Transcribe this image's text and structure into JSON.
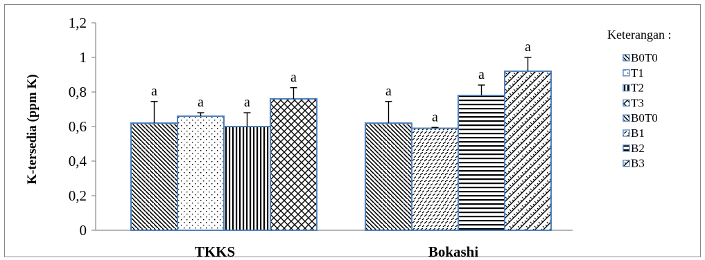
{
  "chart_data": {
    "type": "bar",
    "ylabel": "K-tersedia (ppm K)",
    "ylim": [
      0,
      1.2
    ],
    "yticks": [
      "0",
      "0,2",
      "0,4",
      "0,6",
      "0,8",
      "1",
      "1,2"
    ],
    "grid": false,
    "legend_position": "right",
    "legend_title": "Keterangan :",
    "groups": [
      {
        "category": "TKKS",
        "bars": [
          {
            "name": "B0T0",
            "pattern": "diag-back",
            "value": 0.62,
            "error": 0.125,
            "label": "a"
          },
          {
            "name": "T1",
            "pattern": "dots",
            "value": 0.66,
            "error": 0.02,
            "label": "a"
          },
          {
            "name": "T2",
            "pattern": "vertical",
            "value": 0.6,
            "error": 0.08,
            "label": "a"
          },
          {
            "name": "T3",
            "pattern": "crosshatch",
            "value": 0.76,
            "error": 0.065,
            "label": "a"
          }
        ]
      },
      {
        "category": "Bokashi",
        "bars": [
          {
            "name": "B0T0",
            "pattern": "diag-back",
            "value": 0.62,
            "error": 0.125,
            "label": "a"
          },
          {
            "name": "B1",
            "pattern": "dashes",
            "value": 0.59,
            "error": 0.005,
            "label": "a"
          },
          {
            "name": "B2",
            "pattern": "horizontal",
            "value": 0.78,
            "error": 0.06,
            "label": "a"
          },
          {
            "name": "B3",
            "pattern": "zigzag",
            "value": 0.92,
            "error": 0.08,
            "label": "a"
          }
        ]
      }
    ],
    "legend": [
      {
        "label": "B0T0",
        "pattern": "diag-back"
      },
      {
        "label": "T1",
        "pattern": "dots"
      },
      {
        "label": "T2",
        "pattern": "vertical"
      },
      {
        "label": "T3",
        "pattern": "crosshatch"
      },
      {
        "label": "B0T0",
        "pattern": "diag-back"
      },
      {
        "label": "B1",
        "pattern": "dashes"
      },
      {
        "label": "B2",
        "pattern": "horizontal"
      },
      {
        "label": "B3",
        "pattern": "zigzag"
      }
    ],
    "colors": {
      "bar_border": "#4F81BD",
      "axis": "#888888",
      "ink": "#000000"
    }
  }
}
